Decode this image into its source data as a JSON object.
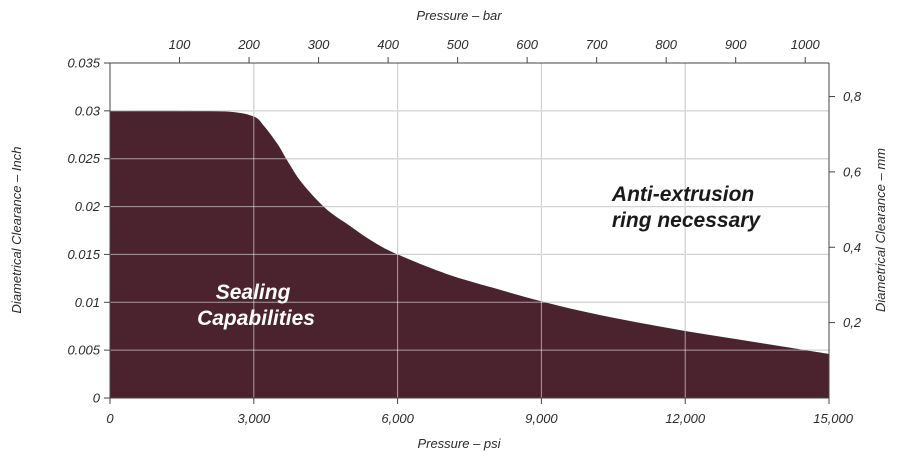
{
  "chart_data": {
    "type": "area",
    "xlabel": "Pressure – psi",
    "x2label": "Pressure – bar",
    "ylabel": "Diametrical Clearance – Inch",
    "y2label": "Diametrical Clearance – mm",
    "xlim": [
      0,
      15000
    ],
    "ylim": [
      0,
      0.035
    ],
    "x_ticks": [
      "0",
      "3,000",
      "6,000",
      "9,000",
      "12,000",
      "15,000"
    ],
    "x2_ticks": [
      "100",
      "200",
      "300",
      "400",
      "500",
      "600",
      "700",
      "800",
      "900",
      "1000"
    ],
    "y_ticks": [
      "0",
      "0.005",
      "0.01",
      "0.015",
      "0.02",
      "0.025",
      "0.03",
      "0.035"
    ],
    "y2_ticks": [
      "0,2",
      "0,4",
      "0,6",
      "0,8"
    ],
    "grid": true,
    "series": [
      {
        "x": [
          0,
          1500,
          2500,
          3000,
          3200,
          3500,
          3700,
          4000,
          4500,
          5000,
          5500,
          6000,
          7000,
          8000,
          9000,
          10000,
          11000,
          12000,
          13000,
          14000,
          15000
        ],
        "y": [
          0.03,
          0.03,
          0.0299,
          0.0294,
          0.0285,
          0.0265,
          0.0248,
          0.0225,
          0.0198,
          0.018,
          0.0163,
          0.015,
          0.013,
          0.0115,
          0.0101,
          0.0089,
          0.0079,
          0.007,
          0.0062,
          0.0054,
          0.0046
        ],
        "color": "#4a232e"
      }
    ],
    "annotations": [
      {
        "lines": [
          "Sealing",
          "Capabilities"
        ]
      },
      {
        "lines": [
          "Anti-extrusion",
          "ring necessary"
        ]
      }
    ]
  }
}
